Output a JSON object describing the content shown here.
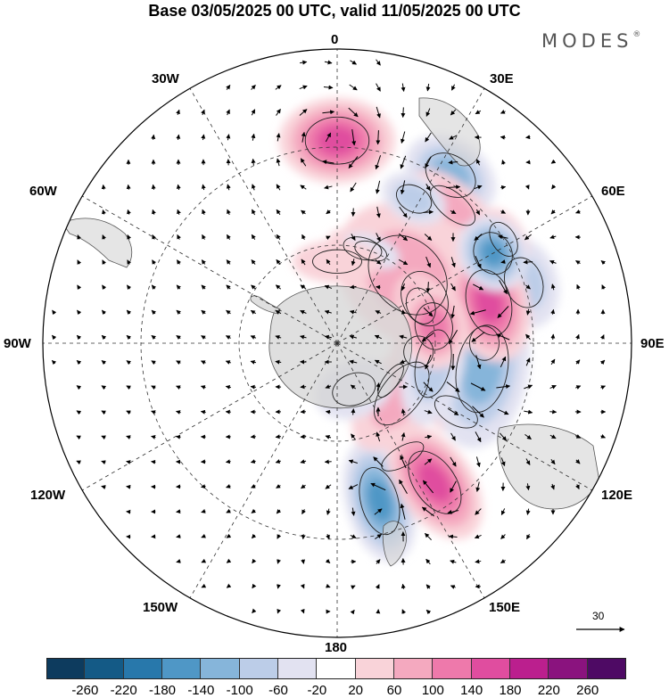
{
  "title": "Base 03/05/2025 00 UTC, valid 11/05/2025 00 UTC",
  "brand": "MODES",
  "brand_mark": "®",
  "longitude_labels": {
    "top": "0",
    "top_right": "30E",
    "right_upper": "60E",
    "right": "90E",
    "right_lower": "120E",
    "bottom_right": "150E",
    "bottom": "180",
    "bottom_left": "150W",
    "left_lower": "120W",
    "left": "90W",
    "left_upper": "60W",
    "top_left": "30W"
  },
  "wind_scale": {
    "label": "30",
    "icon": "arrow-right-icon"
  },
  "colorbar": {
    "ticks": [
      "-260",
      "-220",
      "-180",
      "-140",
      "-100",
      "-60",
      "-20",
      "20",
      "60",
      "100",
      "140",
      "180",
      "220",
      "260"
    ],
    "colors": [
      "#0d3b5e",
      "#145a86",
      "#2878ab",
      "#4f97c6",
      "#86b5da",
      "#bccde8",
      "#e2e2f1",
      "#ffffff",
      "#f9d3d9",
      "#f4a9bf",
      "#ee79ab",
      "#e04d9f",
      "#bb1f8e",
      "#8a137e",
      "#4e0a64"
    ]
  },
  "anomalies": [
    {
      "lon": 0,
      "lat": 62,
      "rx": 65,
      "ry": 48,
      "level": 4
    },
    {
      "lon": 34,
      "lat": 62,
      "rx": 55,
      "ry": 40,
      "level": -3
    },
    {
      "lon": 72,
      "lat": 60,
      "rx": 52,
      "ry": 38,
      "level": -2
    },
    {
      "lon": 63,
      "lat": 30,
      "rx": 58,
      "ry": 45,
      "level": -4
    },
    {
      "lon": 40,
      "lat": 55,
      "rx": 55,
      "ry": 26,
      "level": 2
    },
    {
      "lon": 15,
      "lat": 30,
      "rx": 40,
      "ry": 22,
      "level": 1
    },
    {
      "lon": 46,
      "lat": 30,
      "rx": 90,
      "ry": 70,
      "level": 2
    },
    {
      "lon": 66,
      "lat": 28,
      "rx": 38,
      "ry": 28,
      "level": 3
    },
    {
      "lon": 58,
      "lat": 60,
      "rx": 38,
      "ry": 24,
      "level": 3
    },
    {
      "lon": 90,
      "lat": 45,
      "rx": 35,
      "ry": 30,
      "level": -4
    },
    {
      "lon": 96,
      "lat": 25,
      "rx": 32,
      "ry": 30,
      "level": 1
    },
    {
      "lon": 120,
      "lat": 42,
      "rx": 26,
      "ry": 48,
      "level": 2
    },
    {
      "lon": 125,
      "lat": 20,
      "rx": 40,
      "ry": 15,
      "level": -1
    },
    {
      "lon": 150,
      "lat": 40,
      "rx": 48,
      "ry": 20,
      "level": 1
    },
    {
      "lon": 165,
      "lat": 50,
      "rx": 38,
      "ry": 70,
      "level": -4
    },
    {
      "lon": 145,
      "lat": 52,
      "rx": 42,
      "ry": 72,
      "level": 4
    },
    {
      "lon": 128,
      "lat": 25,
      "rx": 75,
      "ry": 40,
      "level": 2
    },
    {
      "lon": 160,
      "lat": 15,
      "rx": 45,
      "ry": 32,
      "level": -1
    },
    {
      "lon": 100,
      "lat": 45,
      "rx": 90,
      "ry": 52,
      "level": -3
    },
    {
      "lon": 102,
      "lat": 30,
      "rx": 70,
      "ry": 35,
      "level": -2
    },
    {
      "lon": 75,
      "lat": 48,
      "rx": 68,
      "ry": 45,
      "level": 4
    },
    {
      "lon": 80,
      "lat": 30,
      "rx": 48,
      "ry": 38,
      "level": 3
    },
    {
      "lon": 60,
      "lat": 55,
      "rx": 44,
      "ry": 38,
      "level": -4
    },
    {
      "lon": 28,
      "lat": 50,
      "rx": 38,
      "ry": 26,
      "level": -2
    },
    {
      "lon": 20,
      "lat": 30,
      "rx": 34,
      "ry": 18,
      "level": -1
    },
    {
      "lon": 0,
      "lat": 25,
      "rx": 50,
      "ry": 24,
      "level": 1
    }
  ]
}
